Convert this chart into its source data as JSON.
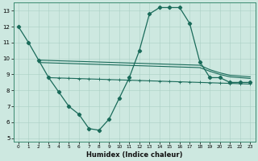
{
  "x": [
    0,
    1,
    2,
    3,
    4,
    5,
    6,
    7,
    8,
    9,
    10,
    11,
    12,
    13,
    14,
    15,
    16,
    17,
    18,
    19,
    20,
    21,
    22,
    23
  ],
  "line1": [
    12.0,
    11.0,
    9.9,
    8.8,
    7.9,
    7.0,
    6.5,
    5.6,
    5.5,
    6.2,
    7.5,
    8.8,
    10.5,
    12.8,
    13.2,
    13.2,
    13.2,
    12.2,
    9.8,
    8.8,
    8.8,
    8.5,
    8.5,
    8.5
  ],
  "line2_x": [
    2,
    3,
    4,
    5,
    6,
    7,
    8,
    9,
    10,
    11,
    12,
    13,
    14,
    15,
    16,
    17,
    18,
    19,
    20,
    21,
    22,
    23
  ],
  "line2_y": [
    9.9,
    9.88,
    9.86,
    9.84,
    9.82,
    9.8,
    9.78,
    9.76,
    9.74,
    9.72,
    9.7,
    9.68,
    9.66,
    9.64,
    9.62,
    9.6,
    9.58,
    9.3,
    9.1,
    8.95,
    8.9,
    8.85
  ],
  "line3_x": [
    2,
    3,
    4,
    5,
    6,
    7,
    8,
    9,
    10,
    11,
    12,
    13,
    14,
    15,
    16,
    17,
    18,
    19,
    20,
    21,
    22,
    23
  ],
  "line3_y": [
    9.75,
    9.73,
    9.71,
    9.69,
    9.67,
    9.65,
    9.63,
    9.61,
    9.59,
    9.57,
    9.55,
    9.53,
    9.51,
    9.49,
    9.47,
    9.45,
    9.43,
    9.2,
    9.0,
    8.85,
    8.8,
    8.75
  ],
  "line4_x": [
    3,
    4,
    5,
    6,
    7,
    8,
    9,
    10,
    11,
    12,
    13,
    14,
    15,
    16,
    17,
    18,
    19,
    20,
    21,
    22,
    23
  ],
  "line4_y": [
    8.8,
    8.78,
    8.76,
    8.74,
    8.72,
    8.7,
    8.68,
    8.66,
    8.64,
    8.62,
    8.6,
    8.58,
    8.56,
    8.54,
    8.52,
    8.5,
    8.48,
    8.46,
    8.44,
    8.42,
    8.4
  ],
  "bg_color": "#cde8e0",
  "line_color": "#1a6b5a",
  "grid_color": "#aacfc5",
  "xlabel": "Humidex (Indice chaleur)",
  "ylim": [
    4.8,
    13.5
  ],
  "xlim": [
    -0.5,
    23.5
  ],
  "yticks": [
    5,
    6,
    7,
    8,
    9,
    10,
    11,
    12,
    13
  ],
  "xticks": [
    0,
    1,
    2,
    3,
    4,
    5,
    6,
    7,
    8,
    9,
    10,
    11,
    12,
    13,
    14,
    15,
    16,
    17,
    18,
    19,
    20,
    21,
    22,
    23
  ]
}
